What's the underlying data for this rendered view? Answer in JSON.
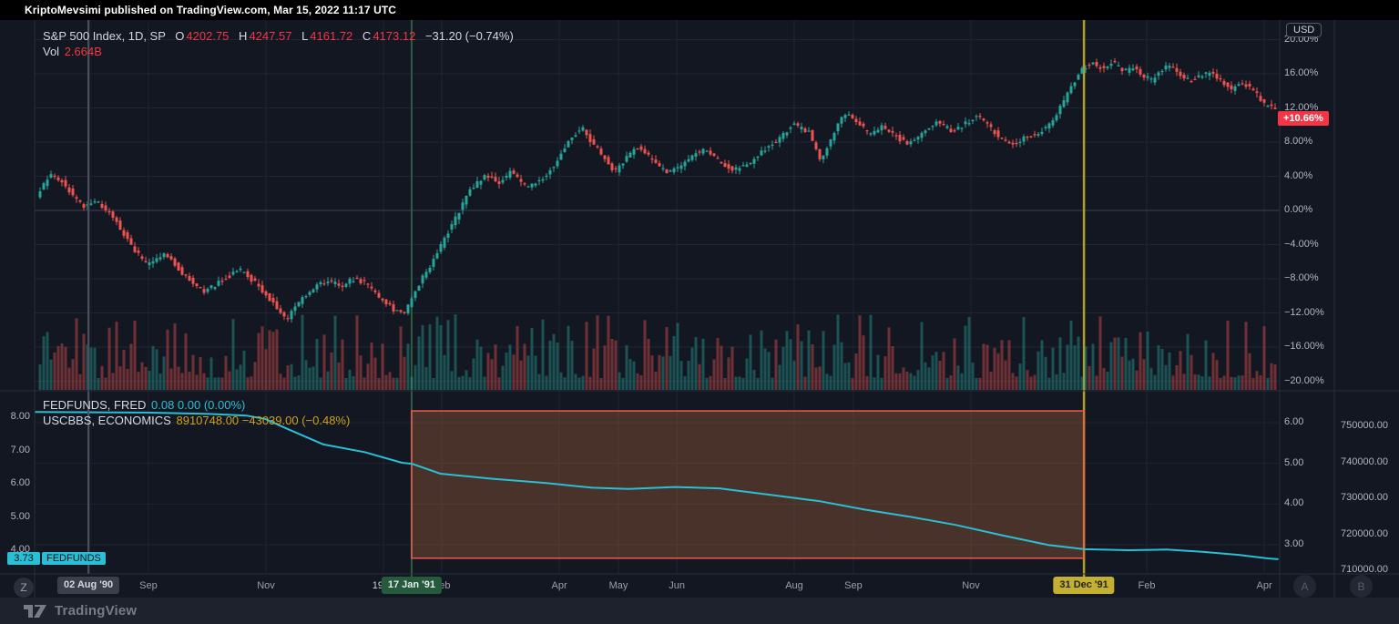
{
  "header": {
    "publish_text": "KriptoMevsimi published on TradingView.com, Mar 15, 2022 11:17 UTC"
  },
  "footer": {
    "brand": "TradingView"
  },
  "toolbar_buttons": {
    "z": "Z",
    "a": "A",
    "b": "B"
  },
  "main_pane": {
    "legend": {
      "title": "S&P 500 Index, 1D, SP",
      "o_label": "O",
      "o": "4202.75",
      "h_label": "H",
      "h": "4247.57",
      "l_label": "L",
      "l": "4161.72",
      "c_label": "C",
      "c": "4173.12",
      "change": "−31.20 (−0.74%)",
      "vol_label": "Vol",
      "vol": "2.664B"
    }
  },
  "sub_pane": {
    "rows": [
      {
        "title": "FEDFUNDS, FRED",
        "values": "0.08  0.00 (0.00%)"
      },
      {
        "title": "USCBBS, ECONOMICS",
        "values": "8910748.00  −43039.00 (−0.48%)"
      }
    ]
  },
  "colors": {
    "background": "#131722",
    "grid": "#1f2532",
    "zero_line": "#3c4152",
    "separator": "#2a2e39",
    "up": "#26a69a",
    "down": "#ef5350",
    "accent_red": "#f23645",
    "fedfunds_line": "#2abfd4",
    "uscbbs_text": "#cfa118",
    "event_green": "#2d5e41",
    "event_yellow": "#b2a125",
    "crosshair": "#4b505f"
  },
  "chart_data": [
    {
      "type": "candlestick",
      "title": "S&P 500 Index, 1D, SP",
      "ohlc": {
        "open": "4202.75",
        "high": "4247.57",
        "low": "4161.72",
        "close": "4173.12",
        "change": "−31.20 (−0.74%)",
        "volume": "2.664B"
      },
      "yaxis": {
        "unit": "USD",
        "format": "percent",
        "ylim": [
          -21.5,
          21.8
        ],
        "zero_line_pct": 0,
        "ticks": [
          {
            "label": "20.00%",
            "pct": 20
          },
          {
            "label": "16.00%",
            "pct": 16
          },
          {
            "label": "12.00%",
            "pct": 12
          },
          {
            "label": "8.00%",
            "pct": 8
          },
          {
            "label": "4.00%",
            "pct": 4
          },
          {
            "label": "0.00%",
            "pct": 0
          },
          {
            "label": "−4.00%",
            "pct": -4
          },
          {
            "label": "−8.00%",
            "pct": -8
          },
          {
            "label": "−12.00%",
            "pct": -12
          },
          {
            "label": "−16.00%",
            "pct": -16
          },
          {
            "label": "−20.00%",
            "pct": -20
          }
        ]
      },
      "last_change_badge": {
        "label": "+10.66%",
        "pct": 10.66
      },
      "time_ticks": [
        {
          "label": "Aug",
          "t": 0.0443
        },
        {
          "label": "Sep",
          "t": 0.0914
        },
        {
          "label": "Nov",
          "t": 0.1858
        },
        {
          "label": "1991",
          "t": 0.2802,
          "year": true
        },
        {
          "label": "Feb",
          "t": 0.327
        },
        {
          "label": "Apr",
          "t": 0.4214
        },
        {
          "label": "May",
          "t": 0.4689
        },
        {
          "label": "Jun",
          "t": 0.5158
        },
        {
          "label": "Aug",
          "t": 0.6101
        },
        {
          "label": "Sep",
          "t": 0.6576
        },
        {
          "label": "Nov",
          "t": 0.752
        },
        {
          "label": "Feb",
          "t": 0.8932
        },
        {
          "label": "Apr",
          "t": 0.9876
        }
      ],
      "events": [
        {
          "label": "17 Jan '91",
          "t": 0.3028,
          "color": "green"
        },
        {
          "label": "31 Dec '91",
          "t": 0.8428,
          "color": "yellow"
        }
      ],
      "crosshair": {
        "label": "02 Aug '90",
        "t": 0.0432
      },
      "candle_count": 340,
      "price_path_anchors_pct": [
        [
          0.001,
          0.8
        ],
        [
          0.015,
          4.2
        ],
        [
          0.026,
          3.2
        ],
        [
          0.042,
          0.3
        ],
        [
          0.051,
          1.2
        ],
        [
          0.064,
          -0.3
        ],
        [
          0.082,
          -4.5
        ],
        [
          0.093,
          -6.3
        ],
        [
          0.108,
          -5.0
        ],
        [
          0.122,
          -7.5
        ],
        [
          0.139,
          -9.6
        ],
        [
          0.155,
          -8.0
        ],
        [
          0.168,
          -7.0
        ],
        [
          0.181,
          -8.6
        ],
        [
          0.193,
          -10.6
        ],
        [
          0.205,
          -12.8
        ],
        [
          0.215,
          -10.8
        ],
        [
          0.225,
          -9.2
        ],
        [
          0.237,
          -8.2
        ],
        [
          0.249,
          -8.8
        ],
        [
          0.259,
          -8.0
        ],
        [
          0.269,
          -8.6
        ],
        [
          0.28,
          -10.2
        ],
        [
          0.291,
          -11.6
        ],
        [
          0.299,
          -12.2
        ],
        [
          0.309,
          -9.2
        ],
        [
          0.32,
          -6.6
        ],
        [
          0.331,
          -3.6
        ],
        [
          0.342,
          -0.6
        ],
        [
          0.353,
          2.6
        ],
        [
          0.366,
          4.2
        ],
        [
          0.376,
          3.2
        ],
        [
          0.386,
          4.6
        ],
        [
          0.397,
          2.8
        ],
        [
          0.41,
          3.6
        ],
        [
          0.422,
          5.6
        ],
        [
          0.433,
          8.4
        ],
        [
          0.442,
          9.8
        ],
        [
          0.449,
          8.2
        ],
        [
          0.459,
          6.4
        ],
        [
          0.468,
          4.4
        ],
        [
          0.477,
          6.0
        ],
        [
          0.486,
          7.6
        ],
        [
          0.493,
          6.8
        ],
        [
          0.503,
          5.2
        ],
        [
          0.512,
          4.3
        ],
        [
          0.522,
          5.4
        ],
        [
          0.533,
          6.6
        ],
        [
          0.543,
          7.2
        ],
        [
          0.554,
          5.6
        ],
        [
          0.565,
          4.8
        ],
        [
          0.576,
          5.4
        ],
        [
          0.587,
          6.8
        ],
        [
          0.6,
          8.4
        ],
        [
          0.612,
          10.0
        ],
        [
          0.625,
          9.2
        ],
        [
          0.634,
          5.8
        ],
        [
          0.644,
          9.0
        ],
        [
          0.653,
          11.4
        ],
        [
          0.664,
          10.2
        ],
        [
          0.673,
          9.0
        ],
        [
          0.683,
          9.8
        ],
        [
          0.695,
          8.6
        ],
        [
          0.705,
          7.8
        ],
        [
          0.717,
          9.2
        ],
        [
          0.727,
          10.4
        ],
        [
          0.739,
          9.4
        ],
        [
          0.749,
          10.0
        ],
        [
          0.761,
          11.2
        ],
        [
          0.771,
          9.6
        ],
        [
          0.78,
          8.2
        ],
        [
          0.789,
          7.8
        ],
        [
          0.799,
          8.6
        ],
        [
          0.81,
          9.2
        ],
        [
          0.819,
          10.2
        ],
        [
          0.828,
          12.4
        ],
        [
          0.837,
          14.8
        ],
        [
          0.844,
          16.6
        ],
        [
          0.852,
          17.2
        ],
        [
          0.861,
          16.6
        ],
        [
          0.869,
          17.4
        ],
        [
          0.877,
          16.2
        ],
        [
          0.885,
          16.8
        ],
        [
          0.893,
          15.8
        ],
        [
          0.9,
          15.2
        ],
        [
          0.907,
          16.4
        ],
        [
          0.914,
          17.0
        ],
        [
          0.923,
          15.8
        ],
        [
          0.932,
          15.2
        ],
        [
          0.939,
          15.8
        ],
        [
          0.948,
          16.2
        ],
        [
          0.956,
          15.2
        ],
        [
          0.964,
          14.2
        ],
        [
          0.973,
          15.0
        ],
        [
          0.982,
          14.0
        ],
        [
          0.99,
          12.6
        ],
        [
          0.996,
          12.0
        ]
      ]
    },
    {
      "type": "volume-bars",
      "name": "Vol",
      "display": "2.664B",
      "colors": {
        "up": "rgba(38,166,154,0.42)",
        "down": "rgba(239,83,80,0.42)"
      }
    },
    {
      "type": "line",
      "name": "FEDFUNDS, FRED",
      "value_display": "0.08  0.00 (0.00%)",
      "color": "#2abfd4",
      "last_value": 3.73,
      "last_value_display": "3.73",
      "badge_label": "FEDFUNDS",
      "left_axis_ticks": [
        {
          "label": "8.00",
          "v": 8
        },
        {
          "label": "7.00",
          "v": 7
        },
        {
          "label": "6.00",
          "v": 6
        },
        {
          "label": "5.00",
          "v": 5
        },
        {
          "label": "4.00",
          "v": 4
        }
      ],
      "right_axis_inner_ticks": [
        {
          "label": "6.00",
          "v": 6
        },
        {
          "label": "5.00",
          "v": 5
        },
        {
          "label": "4.00",
          "v": 4
        },
        {
          "label": "3.00",
          "v": 3
        }
      ],
      "points": [
        [
          0.0,
          8.16
        ],
        [
          0.09,
          8.14
        ],
        [
          0.14,
          8.1
        ],
        [
          0.17,
          8.05
        ],
        [
          0.185,
          7.95
        ],
        [
          0.203,
          7.65
        ],
        [
          0.232,
          7.18
        ],
        [
          0.265,
          6.95
        ],
        [
          0.295,
          6.63
        ],
        [
          0.303,
          6.6
        ],
        [
          0.326,
          6.3
        ],
        [
          0.367,
          6.15
        ],
        [
          0.411,
          6.02
        ],
        [
          0.448,
          5.88
        ],
        [
          0.477,
          5.84
        ],
        [
          0.514,
          5.9
        ],
        [
          0.55,
          5.86
        ],
        [
          0.594,
          5.65
        ],
        [
          0.631,
          5.47
        ],
        [
          0.667,
          5.22
        ],
        [
          0.704,
          5.0
        ],
        [
          0.74,
          4.76
        ],
        [
          0.777,
          4.45
        ],
        [
          0.814,
          4.16
        ],
        [
          0.843,
          4.03
        ],
        [
          0.879,
          4.0
        ],
        [
          0.909,
          4.02
        ],
        [
          0.938,
          3.95
        ],
        [
          0.967,
          3.86
        ],
        [
          0.989,
          3.76
        ],
        [
          0.999,
          3.73
        ]
      ]
    },
    {
      "type": "series-labels-only",
      "name": "USCBBS, ECONOMICS",
      "value_display": "8910748.00  −43039.00 (−0.48%)",
      "color": "#cfa118",
      "right_axis_outer_ticks": [
        {
          "label": "750000.00",
          "v": 750000
        },
        {
          "label": "740000.00",
          "v": 740000
        },
        {
          "label": "730000.00",
          "v": 730000
        },
        {
          "label": "720000.00",
          "v": 720000
        },
        {
          "label": "710000.00",
          "v": 710000
        }
      ]
    },
    {
      "type": "rectangle-drawing",
      "t0": 0.3028,
      "t1": 0.8428,
      "v_top": 8.19,
      "v_bottom": 3.76,
      "fill": "rgba(224,129,64,0.26)",
      "stroke": "#ef5a4c"
    }
  ]
}
